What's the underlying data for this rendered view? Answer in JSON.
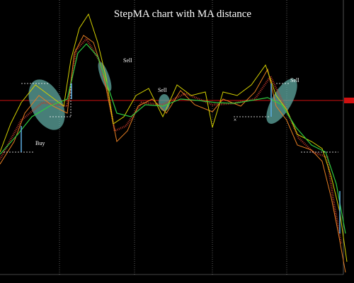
{
  "title": "StepMA chart with MA distance",
  "annotations": [
    "Buy",
    "Sell",
    "Sell",
    "Sell"
  ]
}
